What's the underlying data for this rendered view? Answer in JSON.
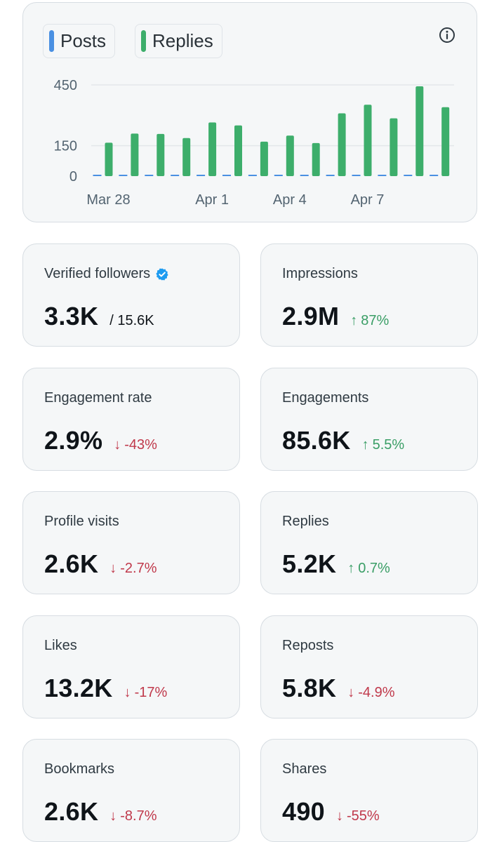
{
  "chart": {
    "legend": [
      {
        "label": "Posts",
        "color": "#4a90e2"
      },
      {
        "label": "Replies",
        "color": "#3dae6b"
      }
    ],
    "info_icon": "info-icon"
  },
  "chart_data": {
    "type": "bar",
    "title": "",
    "xlabel": "",
    "ylabel": "",
    "ylim": [
      0,
      450
    ],
    "y_ticks": [
      0,
      150,
      450
    ],
    "x_tick_labels": [
      "Mar 28",
      "Apr 1",
      "Apr 4",
      "Apr 7"
    ],
    "categories": [
      "Mar 28",
      "Mar 29",
      "Mar 30",
      "Mar 31",
      "Apr 1",
      "Apr 2",
      "Apr 3",
      "Apr 4",
      "Apr 5",
      "Apr 6",
      "Apr 7",
      "Apr 8",
      "Apr 9",
      "Apr 10"
    ],
    "series": [
      {
        "name": "Posts",
        "color": "#4a90e2",
        "values": [
          1,
          1,
          1,
          1,
          2,
          1,
          1,
          1,
          1,
          1,
          1,
          1,
          1,
          1
        ]
      },
      {
        "name": "Replies",
        "color": "#3dae6b",
        "values": [
          165,
          210,
          208,
          188,
          265,
          250,
          170,
          200,
          163,
          310,
          352,
          285,
          443,
          340
        ]
      }
    ]
  },
  "metrics": [
    {
      "label": "Verified followers",
      "value": "3.3K",
      "total": "/ 15.6K",
      "verified": true,
      "verified_icon": "verified-badge-icon"
    },
    {
      "label": "Impressions",
      "value": "2.9M",
      "direction": "up",
      "arrow": "↑",
      "change": "87%"
    },
    {
      "label": "Engagement rate",
      "value": "2.9%",
      "direction": "down",
      "arrow": "↓",
      "change": "-43%"
    },
    {
      "label": "Engagements",
      "value": "85.6K",
      "direction": "up",
      "arrow": "↑",
      "change": "5.5%"
    },
    {
      "label": "Profile visits",
      "value": "2.6K",
      "direction": "down",
      "arrow": "↓",
      "change": "-2.7%"
    },
    {
      "label": "Replies",
      "value": "5.2K",
      "direction": "up",
      "arrow": "↑",
      "change": "0.7%"
    },
    {
      "label": "Likes",
      "value": "13.2K",
      "direction": "down",
      "arrow": "↓",
      "change": "-17%"
    },
    {
      "label": "Reposts",
      "value": "5.8K",
      "direction": "down",
      "arrow": "↓",
      "change": "-4.9%"
    },
    {
      "label": "Bookmarks",
      "value": "2.6K",
      "direction": "down",
      "arrow": "↓",
      "change": "-8.7%"
    },
    {
      "label": "Shares",
      "value": "490",
      "direction": "down",
      "arrow": "↓",
      "change": "-55%"
    }
  ],
  "colors": {
    "up": "#3a9e66",
    "down": "#c0394b",
    "verified": "#1d9bf0"
  }
}
